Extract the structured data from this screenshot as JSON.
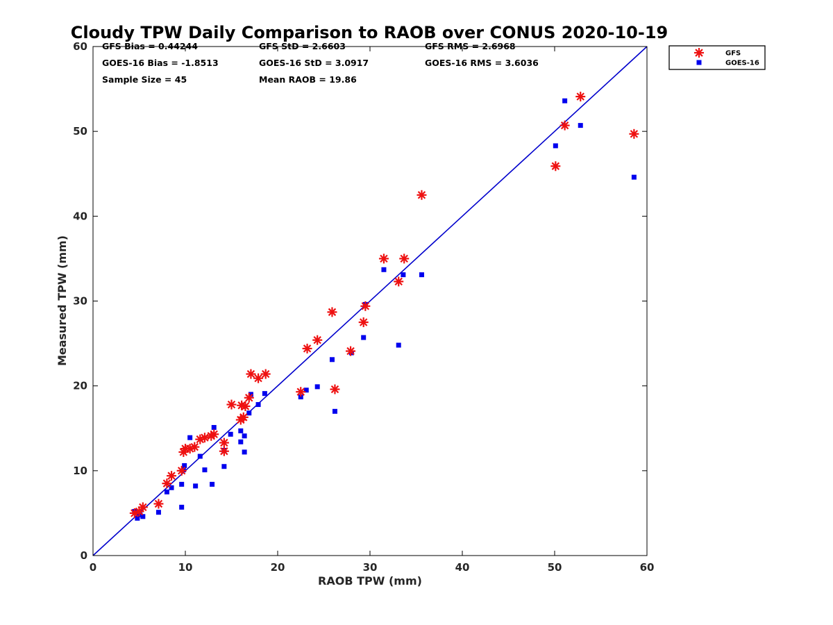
{
  "chart_data": {
    "type": "scatter",
    "title": "Cloudy TPW Daily Comparison to RAOB over CONUS 2020-10-19",
    "xlabel": "RAOB TPW (mm)",
    "ylabel": "Measured TPW (mm)",
    "xlim": [
      0,
      60
    ],
    "ylim": [
      0,
      60
    ],
    "xticks": [
      "0",
      "10",
      "20",
      "30",
      "40",
      "50",
      "60"
    ],
    "yticks": [
      "0",
      "10",
      "20",
      "30",
      "40",
      "50",
      "60"
    ],
    "grid": false,
    "legend_position": "top-right",
    "reference_line": {
      "from": [
        0,
        0
      ],
      "to": [
        60,
        60
      ],
      "color": "#0000cc"
    },
    "stats": [
      "GFS Bias = 0.44244",
      "GFS StD = 2.6603",
      "GFS RMS = 2.6968",
      "GOES-16 Bias = -1.8513",
      "GOES-16 StD = 3.0917",
      "GOES-16 RMS = 3.6036",
      "Sample Size = 45",
      "Mean RAOB = 19.86"
    ],
    "series": [
      {
        "name": "GFS",
        "marker": "asterisk",
        "color": "#ee1111",
        "points": [
          [
            4.5,
            5.0
          ],
          [
            5.0,
            5.2
          ],
          [
            5.4,
            5.7
          ],
          [
            7.1,
            6.1
          ],
          [
            8.0,
            8.5
          ],
          [
            8.5,
            9.4
          ],
          [
            9.6,
            10.0
          ],
          [
            9.8,
            12.2
          ],
          [
            10.0,
            12.6
          ],
          [
            10.5,
            12.6
          ],
          [
            11.0,
            12.8
          ],
          [
            11.6,
            13.7
          ],
          [
            12.1,
            13.9
          ],
          [
            12.8,
            14.1
          ],
          [
            13.1,
            14.3
          ],
          [
            14.2,
            12.3
          ],
          [
            14.2,
            13.3
          ],
          [
            15.0,
            17.8
          ],
          [
            16.0,
            16.0
          ],
          [
            16.1,
            17.7
          ],
          [
            16.3,
            16.3
          ],
          [
            16.5,
            17.6
          ],
          [
            16.9,
            18.6
          ],
          [
            17.1,
            21.4
          ],
          [
            17.9,
            20.9
          ],
          [
            18.7,
            21.4
          ],
          [
            22.5,
            19.3
          ],
          [
            23.2,
            24.4
          ],
          [
            24.3,
            25.4
          ],
          [
            25.9,
            28.7
          ],
          [
            26.2,
            19.6
          ],
          [
            27.9,
            24.1
          ],
          [
            29.3,
            27.5
          ],
          [
            29.5,
            29.4
          ],
          [
            31.5,
            35.0
          ],
          [
            33.1,
            32.3
          ],
          [
            33.7,
            35.0
          ],
          [
            35.6,
            42.5
          ],
          [
            50.1,
            45.9
          ],
          [
            51.1,
            50.7
          ],
          [
            52.8,
            54.1
          ],
          [
            58.6,
            49.7
          ]
        ]
      },
      {
        "name": "GOES-16",
        "marker": "square",
        "color": "#0000ee",
        "points": [
          [
            4.5,
            5.2
          ],
          [
            4.8,
            4.4
          ],
          [
            5.0,
            5.1
          ],
          [
            5.1,
            4.8
          ],
          [
            5.4,
            4.6
          ],
          [
            7.1,
            5.1
          ],
          [
            8.0,
            7.5
          ],
          [
            8.5,
            8.0
          ],
          [
            9.6,
            8.4
          ],
          [
            9.6,
            5.7
          ],
          [
            9.8,
            10.1
          ],
          [
            9.9,
            10.6
          ],
          [
            10.5,
            13.9
          ],
          [
            11.1,
            8.2
          ],
          [
            11.6,
            11.7
          ],
          [
            12.1,
            10.1
          ],
          [
            12.9,
            8.4
          ],
          [
            13.1,
            15.1
          ],
          [
            14.2,
            12.4
          ],
          [
            14.2,
            10.5
          ],
          [
            14.9,
            14.3
          ],
          [
            16.0,
            14.7
          ],
          [
            16.0,
            13.4
          ],
          [
            16.4,
            14.1
          ],
          [
            16.4,
            12.2
          ],
          [
            16.9,
            16.8
          ],
          [
            17.1,
            19.0
          ],
          [
            17.9,
            17.8
          ],
          [
            18.6,
            19.1
          ],
          [
            22.5,
            18.7
          ],
          [
            23.1,
            19.5
          ],
          [
            24.3,
            19.9
          ],
          [
            25.9,
            23.1
          ],
          [
            26.2,
            17.0
          ],
          [
            28.0,
            23.9
          ],
          [
            29.3,
            25.7
          ],
          [
            29.5,
            29.6
          ],
          [
            31.5,
            33.7
          ],
          [
            33.1,
            24.8
          ],
          [
            33.6,
            33.1
          ],
          [
            35.6,
            33.1
          ],
          [
            50.1,
            48.3
          ],
          [
            51.1,
            53.6
          ],
          [
            52.8,
            50.7
          ],
          [
            58.6,
            44.6
          ]
        ]
      }
    ]
  }
}
